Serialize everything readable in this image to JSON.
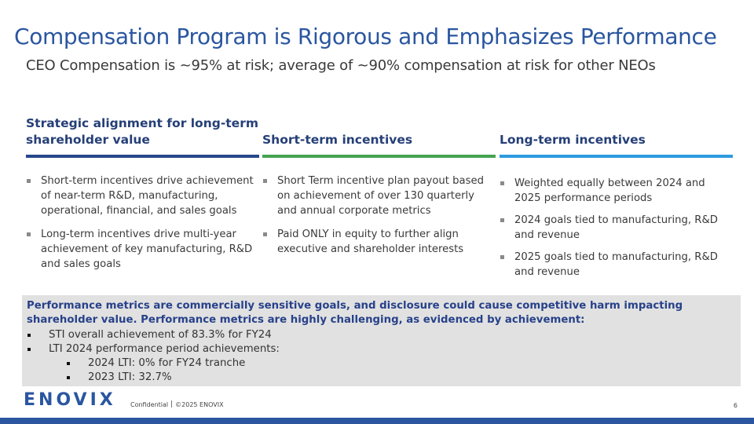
{
  "title": "Compensation Program is Rigorous and Emphasizes Performance",
  "subtitle": "CEO Compensation is ~95% at risk; average of ~90% compensation at risk for other NEOs",
  "columns": [
    {
      "header": "Strategic alignment for long-term shareholder value",
      "accent_color": "#27478a",
      "bullets": [
        "Short-term incentives drive achievement of near-term R&D, manufacturing, operational, financial, and sales goals",
        "Long-term incentives drive multi-year achievement of key manufacturing, R&D and sales goals"
      ]
    },
    {
      "header": "Short-term incentives",
      "accent_color": "#44a451",
      "bullets": [
        "Short Term incentive plan payout based on achievement of over 130 quarterly and annual corporate metrics",
        "Paid ONLY in equity to further align executive and shareholder interests"
      ]
    },
    {
      "header": "Long-term incentives",
      "accent_color": "#2e9be0",
      "bullets": [
        "Weighted equally between 2024 and 2025 performance periods",
        "2024 goals tied to manufacturing, R&D and revenue",
        "2025 goals tied to manufacturing, R&D and revenue"
      ]
    }
  ],
  "performance": {
    "heading": "Performance metrics are commercially sensitive goals, and disclosure could cause competitive harm impacting shareholder value.  Performance metrics are highly challenging, as evidenced by achievement:",
    "items": [
      "STI overall achievement of 83.3% for FY24",
      "LTI 2024 performance period achievements:",
      "2024 LTI: 0% for FY24 tranche",
      "2023 LTI: 32.7%"
    ]
  },
  "footer": {
    "logo": "ENOVIX",
    "confidential": "Confidential",
    "copyright": "©2025 ENOVIX",
    "page_number": "6"
  },
  "colors": {
    "title": "#2a56a0",
    "heading": "#253f77",
    "box_background": "#e1e1e1",
    "brand": "#2a56a0"
  }
}
